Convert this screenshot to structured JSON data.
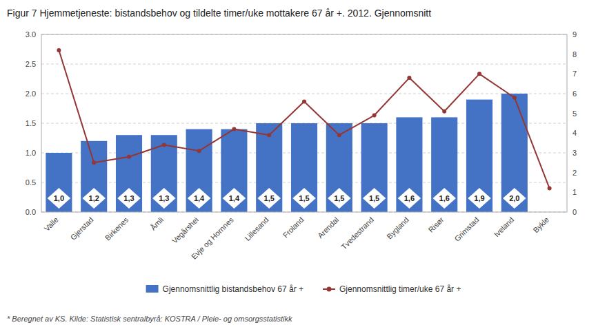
{
  "chart_data": {
    "type": "bar",
    "title": "Figur 7 Hjemmetjeneste: bistandsbehov og tildelte timer/uke mottakere 67 år +. 2012. Gjennomsnitt",
    "categories": [
      "Valle",
      "Gjerstad",
      "Birkenes",
      "Åmli",
      "Vegårshei",
      "Evje og Hornnes",
      "Lillesand",
      "Froland",
      "Arendal",
      "Tvedestrand",
      "Bygland",
      "Risør",
      "Grimstad",
      "Iveland",
      "Bykle"
    ],
    "series": [
      {
        "name": "Gjennomsnittlig bistandsbehov 67 år +",
        "type": "bar",
        "color": "#4472C4",
        "values": [
          1.0,
          1.2,
          1.3,
          1.3,
          1.4,
          1.4,
          1.5,
          1.5,
          1.5,
          1.5,
          1.6,
          1.6,
          1.9,
          2.0,
          0.0
        ],
        "data_labels": true,
        "value_labels": [
          "1,0",
          "1,2",
          "1,3",
          "1,3",
          "1,4",
          "1,4",
          "1,5",
          "1,5",
          "1,5",
          "1,5",
          "1,6",
          "1,6",
          "1,9",
          "2,0",
          null
        ]
      },
      {
        "name": "Gjennomsnittlig timer/uke 67 år +",
        "type": "line",
        "color": "#943634",
        "axis": "y2",
        "marker": "circle",
        "values": [
          8.2,
          2.5,
          2.8,
          3.4,
          3.1,
          4.2,
          3.9,
          5.6,
          3.9,
          4.9,
          6.8,
          5.1,
          7.0,
          5.8,
          1.2
        ]
      }
    ],
    "ylim": [
      0.0,
      3.0
    ],
    "yticks": [
      {
        "value": 0.0,
        "label": "0.0"
      },
      0.5,
      {
        "value": 1.0,
        "label": "1.0"
      },
      1.5,
      {
        "value": 2.0,
        "label": "2.0"
      },
      2.5,
      {
        "value": 3.0,
        "label": "3.0"
      }
    ],
    "y2lim": [
      0,
      9
    ],
    "y2ticks": [
      0,
      1,
      2,
      3,
      4,
      5,
      6,
      7,
      8,
      9
    ],
    "grid": true,
    "legend": "bottom",
    "footnote": "* Beregnet av KS. Kilde: Statistisk sentralbyrå: KOSTRA / Pleie- og omsorgsstatistikk"
  }
}
